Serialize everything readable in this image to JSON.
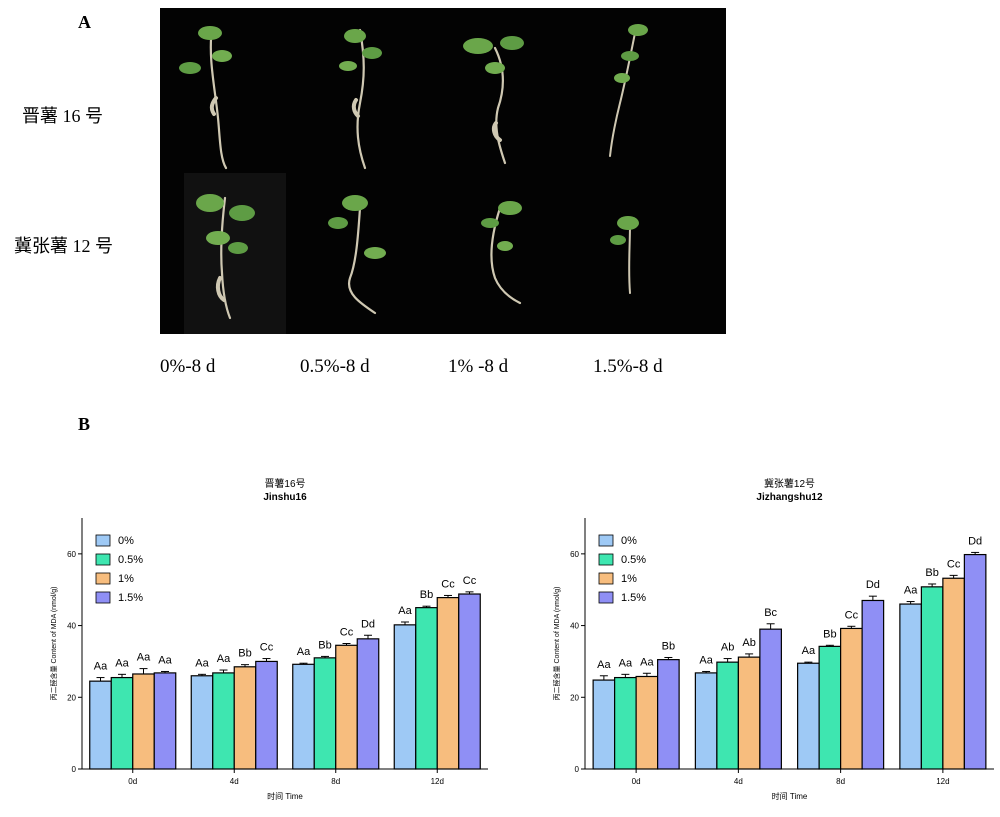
{
  "panel_a": {
    "letter": "A",
    "row_labels": [
      "晋薯 16 号",
      "冀张薯 12 号"
    ],
    "condition_labels": [
      "0%-8 d",
      "0.5%-8 d",
      "1% -8 d",
      "1.5%-8 d"
    ]
  },
  "panel_b": {
    "letter": "B"
  },
  "colors": {
    "0%": "#9ec9f5",
    "0.5%": "#3ee6b0",
    "1%": "#f7bd7e",
    "1.5%": "#8f8ff5"
  },
  "chart_data": [
    {
      "type": "bar",
      "title": "晋薯16号",
      "subtitle": "Jinshu16",
      "xlabel": "时间 Time",
      "ylabel": "丙二醛含量 Content of MDA (nmol/g)",
      "ylim": [
        0,
        70
      ],
      "yticks": [
        0,
        20,
        40,
        60
      ],
      "legend_position": "top-left",
      "categories": [
        "0d",
        "4d",
        "8d",
        "12d"
      ],
      "series": [
        {
          "name": "0%",
          "values": [
            24.5,
            26.0,
            29.2,
            40.2
          ],
          "errors": [
            1.0,
            0.4,
            0.3,
            0.8
          ],
          "labels": [
            "Aa",
            "Aa",
            "Aa",
            "Aa"
          ]
        },
        {
          "name": "0.5%",
          "values": [
            25.5,
            26.8,
            31.0,
            45.0
          ],
          "errors": [
            0.9,
            0.8,
            0.4,
            0.4
          ],
          "labels": [
            "Aa",
            "Aa",
            "Bb",
            "Bb"
          ]
        },
        {
          "name": "1%",
          "values": [
            26.5,
            28.5,
            34.5,
            47.8
          ],
          "errors": [
            1.5,
            0.6,
            0.5,
            0.6
          ],
          "labels": [
            "Aa",
            "Bb",
            "Cc",
            "Cc"
          ]
        },
        {
          "name": "1.5%",
          "values": [
            26.8,
            30.0,
            36.3,
            48.8
          ],
          "errors": [
            0.4,
            0.8,
            1.0,
            0.6
          ],
          "labels": [
            "Aa",
            "Cc",
            "Dd",
            "Cc"
          ]
        }
      ]
    },
    {
      "type": "bar",
      "title": "冀张薯12号",
      "subtitle": "Jizhangshu12",
      "xlabel": "时间 Time",
      "ylabel": "丙二醛含量 Content of MDA (nmol/g)",
      "ylim": [
        0,
        70
      ],
      "yticks": [
        0,
        20,
        40,
        60
      ],
      "legend_position": "top-left",
      "categories": [
        "0d",
        "4d",
        "8d",
        "12d"
      ],
      "series": [
        {
          "name": "0%",
          "values": [
            24.8,
            26.8,
            29.5,
            46.0
          ],
          "errors": [
            1.2,
            0.4,
            0.3,
            0.7
          ],
          "labels": [
            "Aa",
            "Aa",
            "Aa",
            "Aa"
          ]
        },
        {
          "name": "0.5%",
          "values": [
            25.5,
            29.8,
            34.2,
            50.8
          ],
          "errors": [
            0.9,
            1.0,
            0.3,
            0.8
          ],
          "labels": [
            "Aa",
            "Ab",
            "Bb",
            "Bb"
          ]
        },
        {
          "name": "1%",
          "values": [
            25.8,
            31.2,
            39.2,
            53.2
          ],
          "errors": [
            0.9,
            0.9,
            0.6,
            0.8
          ],
          "labels": [
            "Aa",
            "Ab",
            "Cc",
            "Cc"
          ]
        },
        {
          "name": "1.5%",
          "values": [
            30.5,
            39.0,
            47.0,
            59.8
          ],
          "errors": [
            0.6,
            1.5,
            1.2,
            0.6
          ],
          "labels": [
            "Bb",
            "Bc",
            "Dd",
            "Dd"
          ]
        }
      ]
    }
  ]
}
